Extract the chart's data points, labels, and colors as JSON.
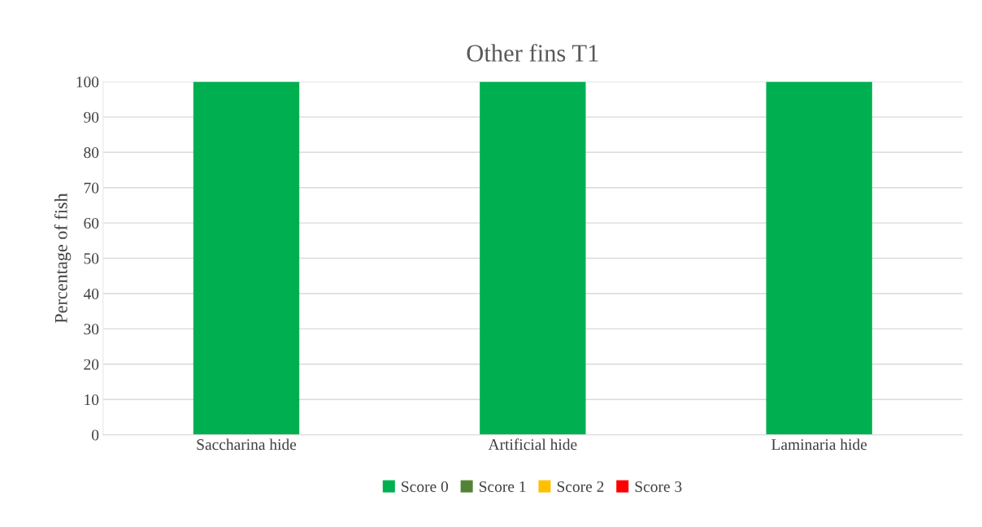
{
  "chart_data": {
    "type": "bar",
    "title": "Other fins T1",
    "ylabel": "Percentage of fish",
    "categories": [
      "Saccharina hide",
      "Artificial hide",
      "Laminaria hide"
    ],
    "stacked": true,
    "series": [
      {
        "name": "Score 0",
        "color": "#00b050",
        "values": [
          100,
          100,
          100
        ]
      },
      {
        "name": "Score 1",
        "color": "#548235",
        "values": [
          0,
          0,
          0
        ]
      },
      {
        "name": "Score 2",
        "color": "#ffc000",
        "values": [
          0,
          0,
          0
        ]
      },
      {
        "name": "Score 3",
        "color": "#ff0000",
        "values": [
          0,
          0,
          0
        ]
      }
    ],
    "ylim": [
      0,
      100
    ],
    "yticks": [
      0,
      10,
      20,
      30,
      40,
      50,
      60,
      70,
      80,
      90,
      100
    ],
    "grid": "y",
    "legend": "bottom"
  }
}
